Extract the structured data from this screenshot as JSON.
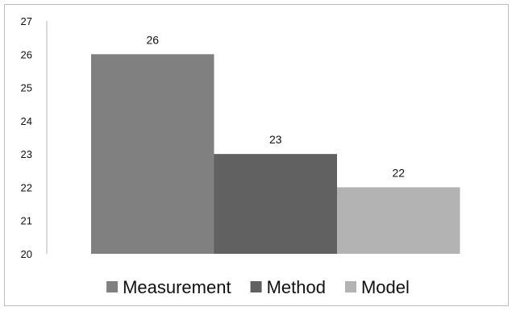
{
  "chart_data": {
    "type": "bar",
    "categories": [
      "Measurement",
      "Method",
      "Model"
    ],
    "values": [
      26,
      23,
      22
    ],
    "data_labels": [
      "26",
      "23",
      "22"
    ],
    "colors": [
      "#808080",
      "#616161",
      "#b3b3b3"
    ],
    "ylim": [
      20,
      27
    ],
    "yticks": [
      "20",
      "21",
      "22",
      "23",
      "24",
      "25",
      "26",
      "27"
    ],
    "grid": false,
    "legend": {
      "position": "bottom",
      "entries": [
        "Measurement",
        "Method",
        "Model"
      ]
    },
    "title": "",
    "xlabel": "",
    "ylabel": ""
  }
}
